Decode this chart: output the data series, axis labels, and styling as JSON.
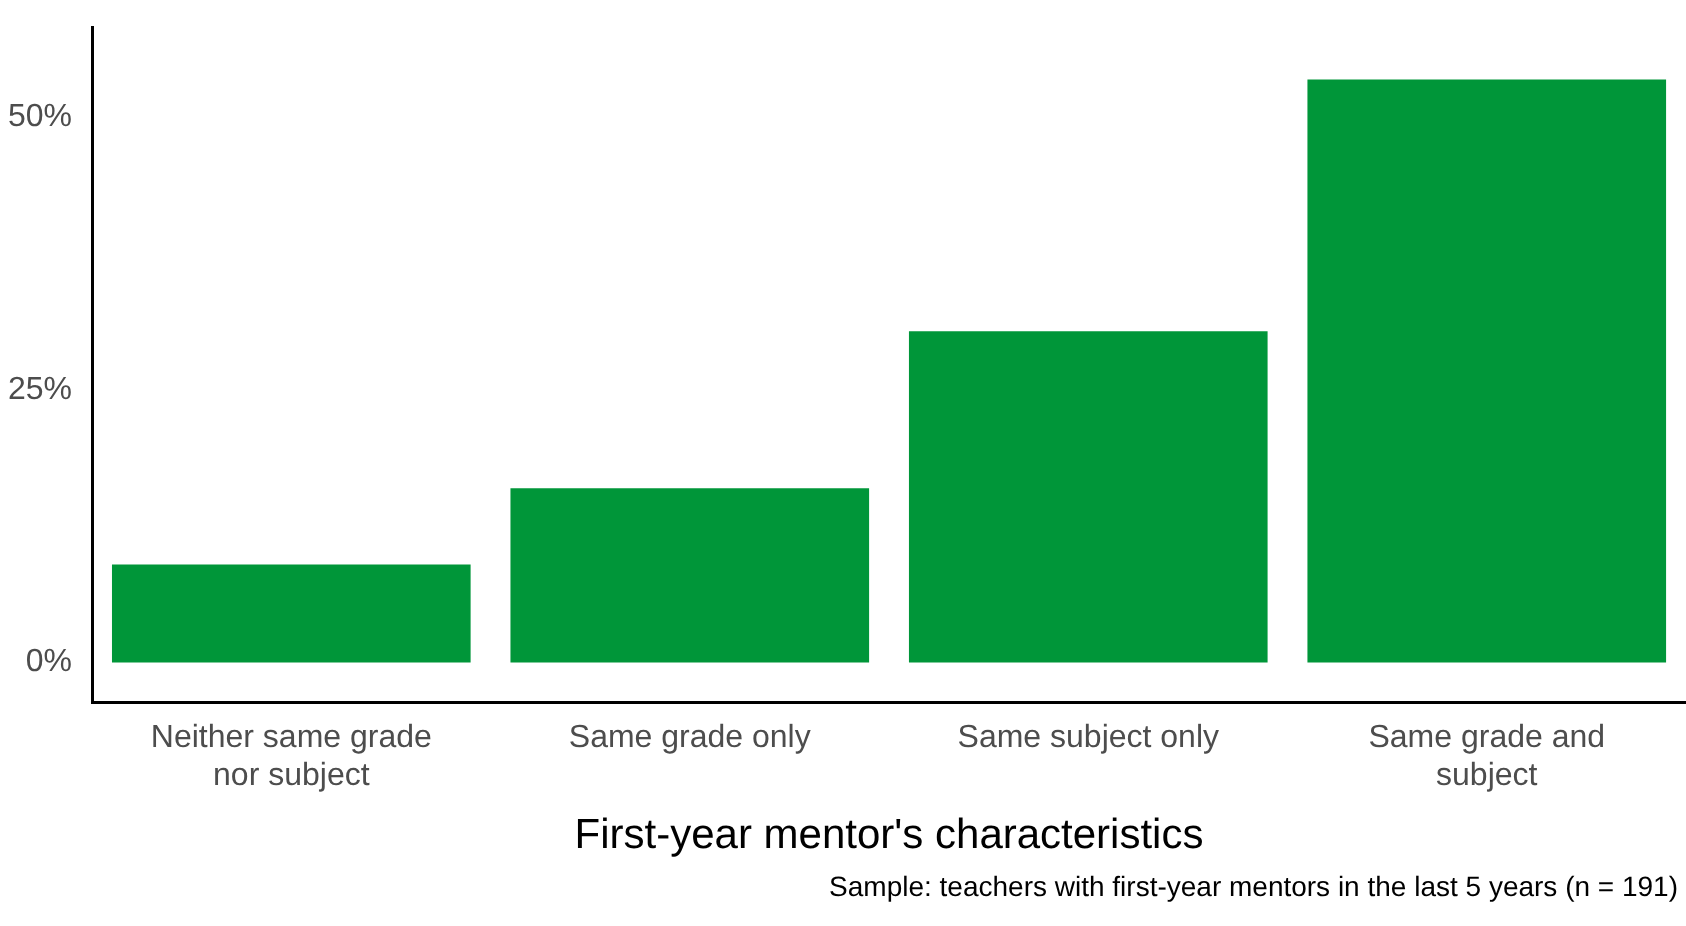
{
  "chart_data": {
    "type": "bar",
    "categories": [
      "Neither same grade nor subject",
      "Same grade only",
      "Same subject only",
      "Same grade and subject"
    ],
    "values": [
      9,
      16,
      30.4,
      53.5
    ],
    "color": "#009639",
    "xlabel": "First-year mentor's characteristics",
    "ylim": [
      -3.7,
      58.3
    ],
    "yticks": [
      {
        "value": 0,
        "label": "0%"
      },
      {
        "value": 25,
        "label": "25%"
      },
      {
        "value": 50,
        "label": "50%"
      }
    ],
    "grid": false,
    "legend": false,
    "annotations": [
      "Sample: teachers with first-year mentors in the last 5 years (n = 191)"
    ]
  }
}
